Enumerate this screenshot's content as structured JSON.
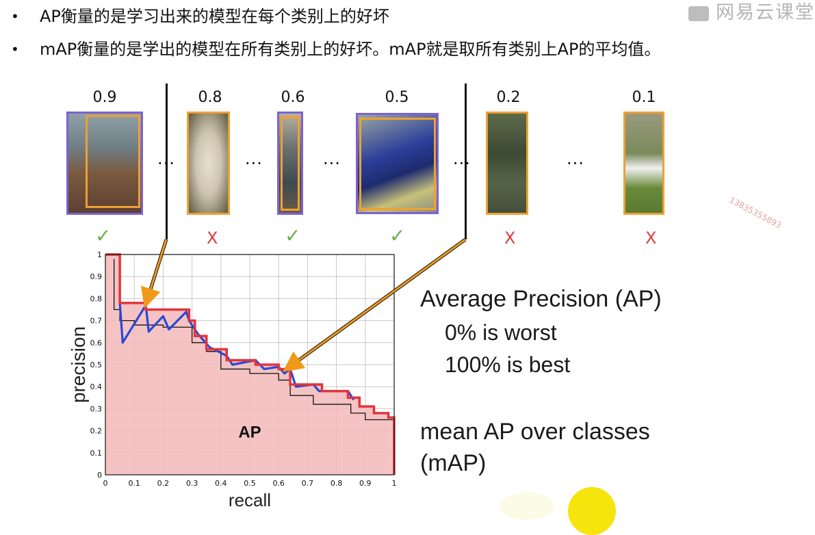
{
  "bullets": [
    {
      "dot": "•",
      "text": "AP衡量的是学习出来的模型在每个类别上的好坏"
    },
    {
      "dot": "•",
      "text": "mAP衡量的是学出的模型在所有类别上的好坏。mAP就是取所有类别上AP的平均值。"
    }
  ],
  "watermark": {
    "text": "网易云课堂"
  },
  "user_id": "13835355893",
  "detections": [
    {
      "score": "0.9",
      "result": "✓",
      "correct": true,
      "content": "person on horse"
    },
    {
      "score": "0.8",
      "result": "X",
      "correct": false,
      "content": "sheep"
    },
    {
      "score": "0.6",
      "result": "✓",
      "correct": true,
      "content": "person"
    },
    {
      "score": "0.5",
      "result": "✓",
      "correct": true,
      "content": "motorcyclist"
    },
    {
      "score": "0.2",
      "result": "X",
      "correct": false,
      "content": "foliage"
    },
    {
      "score": "0.1",
      "result": "X",
      "correct": false,
      "content": "field"
    }
  ],
  "ellipsis": "...",
  "ap_notes": {
    "heading": "Average Precision (AP)",
    "worst": "0% is worst",
    "best": "100% is best",
    "mean_line1": "mean AP over classes",
    "mean_line2": "(mAP)"
  },
  "colors": {
    "box_orange": "#f0a033",
    "box_purple": "#7b63d0",
    "curve_red": "#e2343c",
    "curve_blue": "#2747d8",
    "area_fill": "#f3b8b8",
    "arrow_orange": "#f09a1a"
  },
  "chart_data": {
    "type": "line",
    "title": "",
    "xlabel": "recall",
    "ylabel": "precision",
    "area_label": "AP",
    "xlim": [
      0,
      1
    ],
    "ylim": [
      0,
      1
    ],
    "x_ticks": [
      "0",
      "0.1",
      "0.2",
      "0.3",
      "0.4",
      "0.5",
      "0.6",
      "0.7",
      "0.8",
      "0.9",
      "1"
    ],
    "y_ticks": [
      "0",
      "0.1",
      "0.2",
      "0.3",
      "0.4",
      "0.5",
      "0.6",
      "0.7",
      "0.8",
      "0.9",
      "1"
    ],
    "grid": true,
    "series": [
      {
        "name": "",
        "role": "interpolated precision",
        "color": "#e2343c",
        "x": [
          0,
          0.05,
          0.05,
          0.14,
          0.14,
          0.29,
          0.29,
          0.31,
          0.31,
          0.35,
          0.35,
          0.42,
          0.42,
          0.52,
          0.52,
          0.6,
          0.6,
          0.64,
          0.64,
          0.75,
          0.75,
          0.84,
          0.84,
          0.88,
          0.88,
          0.93,
          0.93,
          0.98,
          0.98,
          1.0,
          1.0
        ],
        "y": [
          1.0,
          1.0,
          0.78,
          0.78,
          0.75,
          0.75,
          0.7,
          0.7,
          0.63,
          0.63,
          0.57,
          0.57,
          0.52,
          0.52,
          0.5,
          0.5,
          0.48,
          0.48,
          0.41,
          0.41,
          0.38,
          0.38,
          0.35,
          0.35,
          0.31,
          0.31,
          0.28,
          0.28,
          0.26,
          0.26,
          0.0
        ]
      },
      {
        "name": "",
        "role": "precision",
        "color": "#2747d8",
        "x": [
          0.05,
          0.06,
          0.14,
          0.15,
          0.2,
          0.22,
          0.28,
          0.29,
          0.32,
          0.36,
          0.42,
          0.44,
          0.52,
          0.55,
          0.6,
          0.62,
          0.64,
          0.66,
          0.72,
          0.74,
          0.84,
          0.86
        ],
        "y": [
          0.78,
          0.6,
          0.77,
          0.65,
          0.72,
          0.66,
          0.74,
          0.7,
          0.64,
          0.58,
          0.54,
          0.5,
          0.52,
          0.48,
          0.49,
          0.46,
          0.48,
          0.4,
          0.41,
          0.38,
          0.38,
          0.34
        ]
      },
      {
        "name": "",
        "role": "precision (thin)",
        "color": "#111111",
        "x": [
          0.03,
          0.03,
          0.05,
          0.05,
          0.1,
          0.1,
          0.2,
          0.2,
          0.3,
          0.3,
          0.35,
          0.35,
          0.4,
          0.4,
          0.5,
          0.5,
          0.6,
          0.6,
          0.64,
          0.64,
          0.72,
          0.72,
          0.85,
          0.85,
          0.9,
          0.9,
          1.0
        ],
        "y": [
          0.98,
          0.75,
          0.75,
          0.7,
          0.7,
          0.68,
          0.68,
          0.67,
          0.67,
          0.6,
          0.6,
          0.56,
          0.56,
          0.48,
          0.48,
          0.46,
          0.46,
          0.43,
          0.43,
          0.36,
          0.36,
          0.32,
          0.32,
          0.28,
          0.28,
          0.25,
          0.25
        ]
      }
    ]
  }
}
